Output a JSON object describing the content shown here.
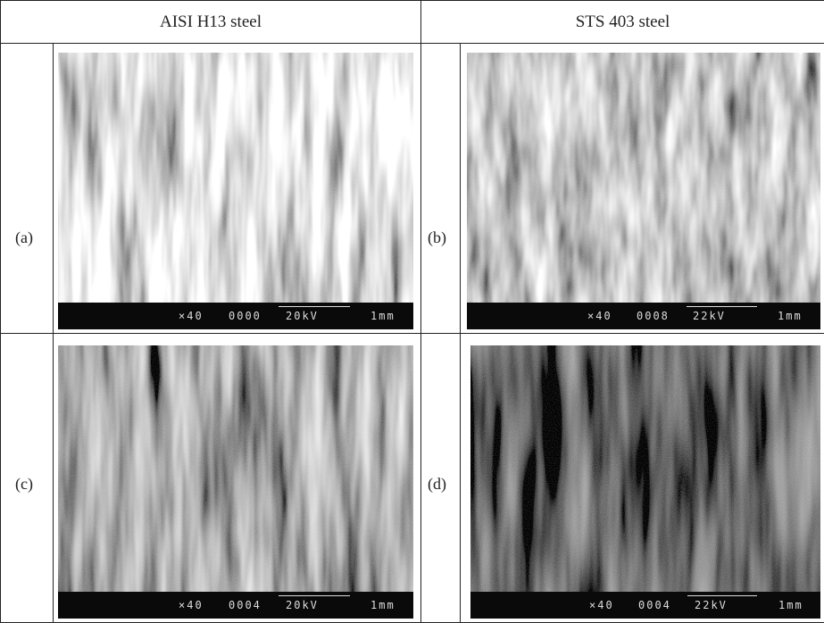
{
  "header": {
    "columns": [
      "AISI H13 steel",
      "STS 403 steel"
    ]
  },
  "panels": [
    {
      "label": "(a)",
      "scale_bar": {
        "magnification": "×40",
        "id": "0000",
        "voltage": "20kV",
        "length": "1mm"
      }
    },
    {
      "label": "(b)",
      "scale_bar": {
        "magnification": "×40",
        "id": "0008",
        "voltage": "22kV",
        "length": "1mm"
      }
    },
    {
      "label": "(c)",
      "scale_bar": {
        "magnification": "×40",
        "id": "0004",
        "voltage": "20kV",
        "length": "1mm"
      }
    },
    {
      "label": "(d)",
      "scale_bar": {
        "magnification": "×40",
        "id": "0004",
        "voltage": "22kV",
        "length": "1mm"
      }
    }
  ]
}
